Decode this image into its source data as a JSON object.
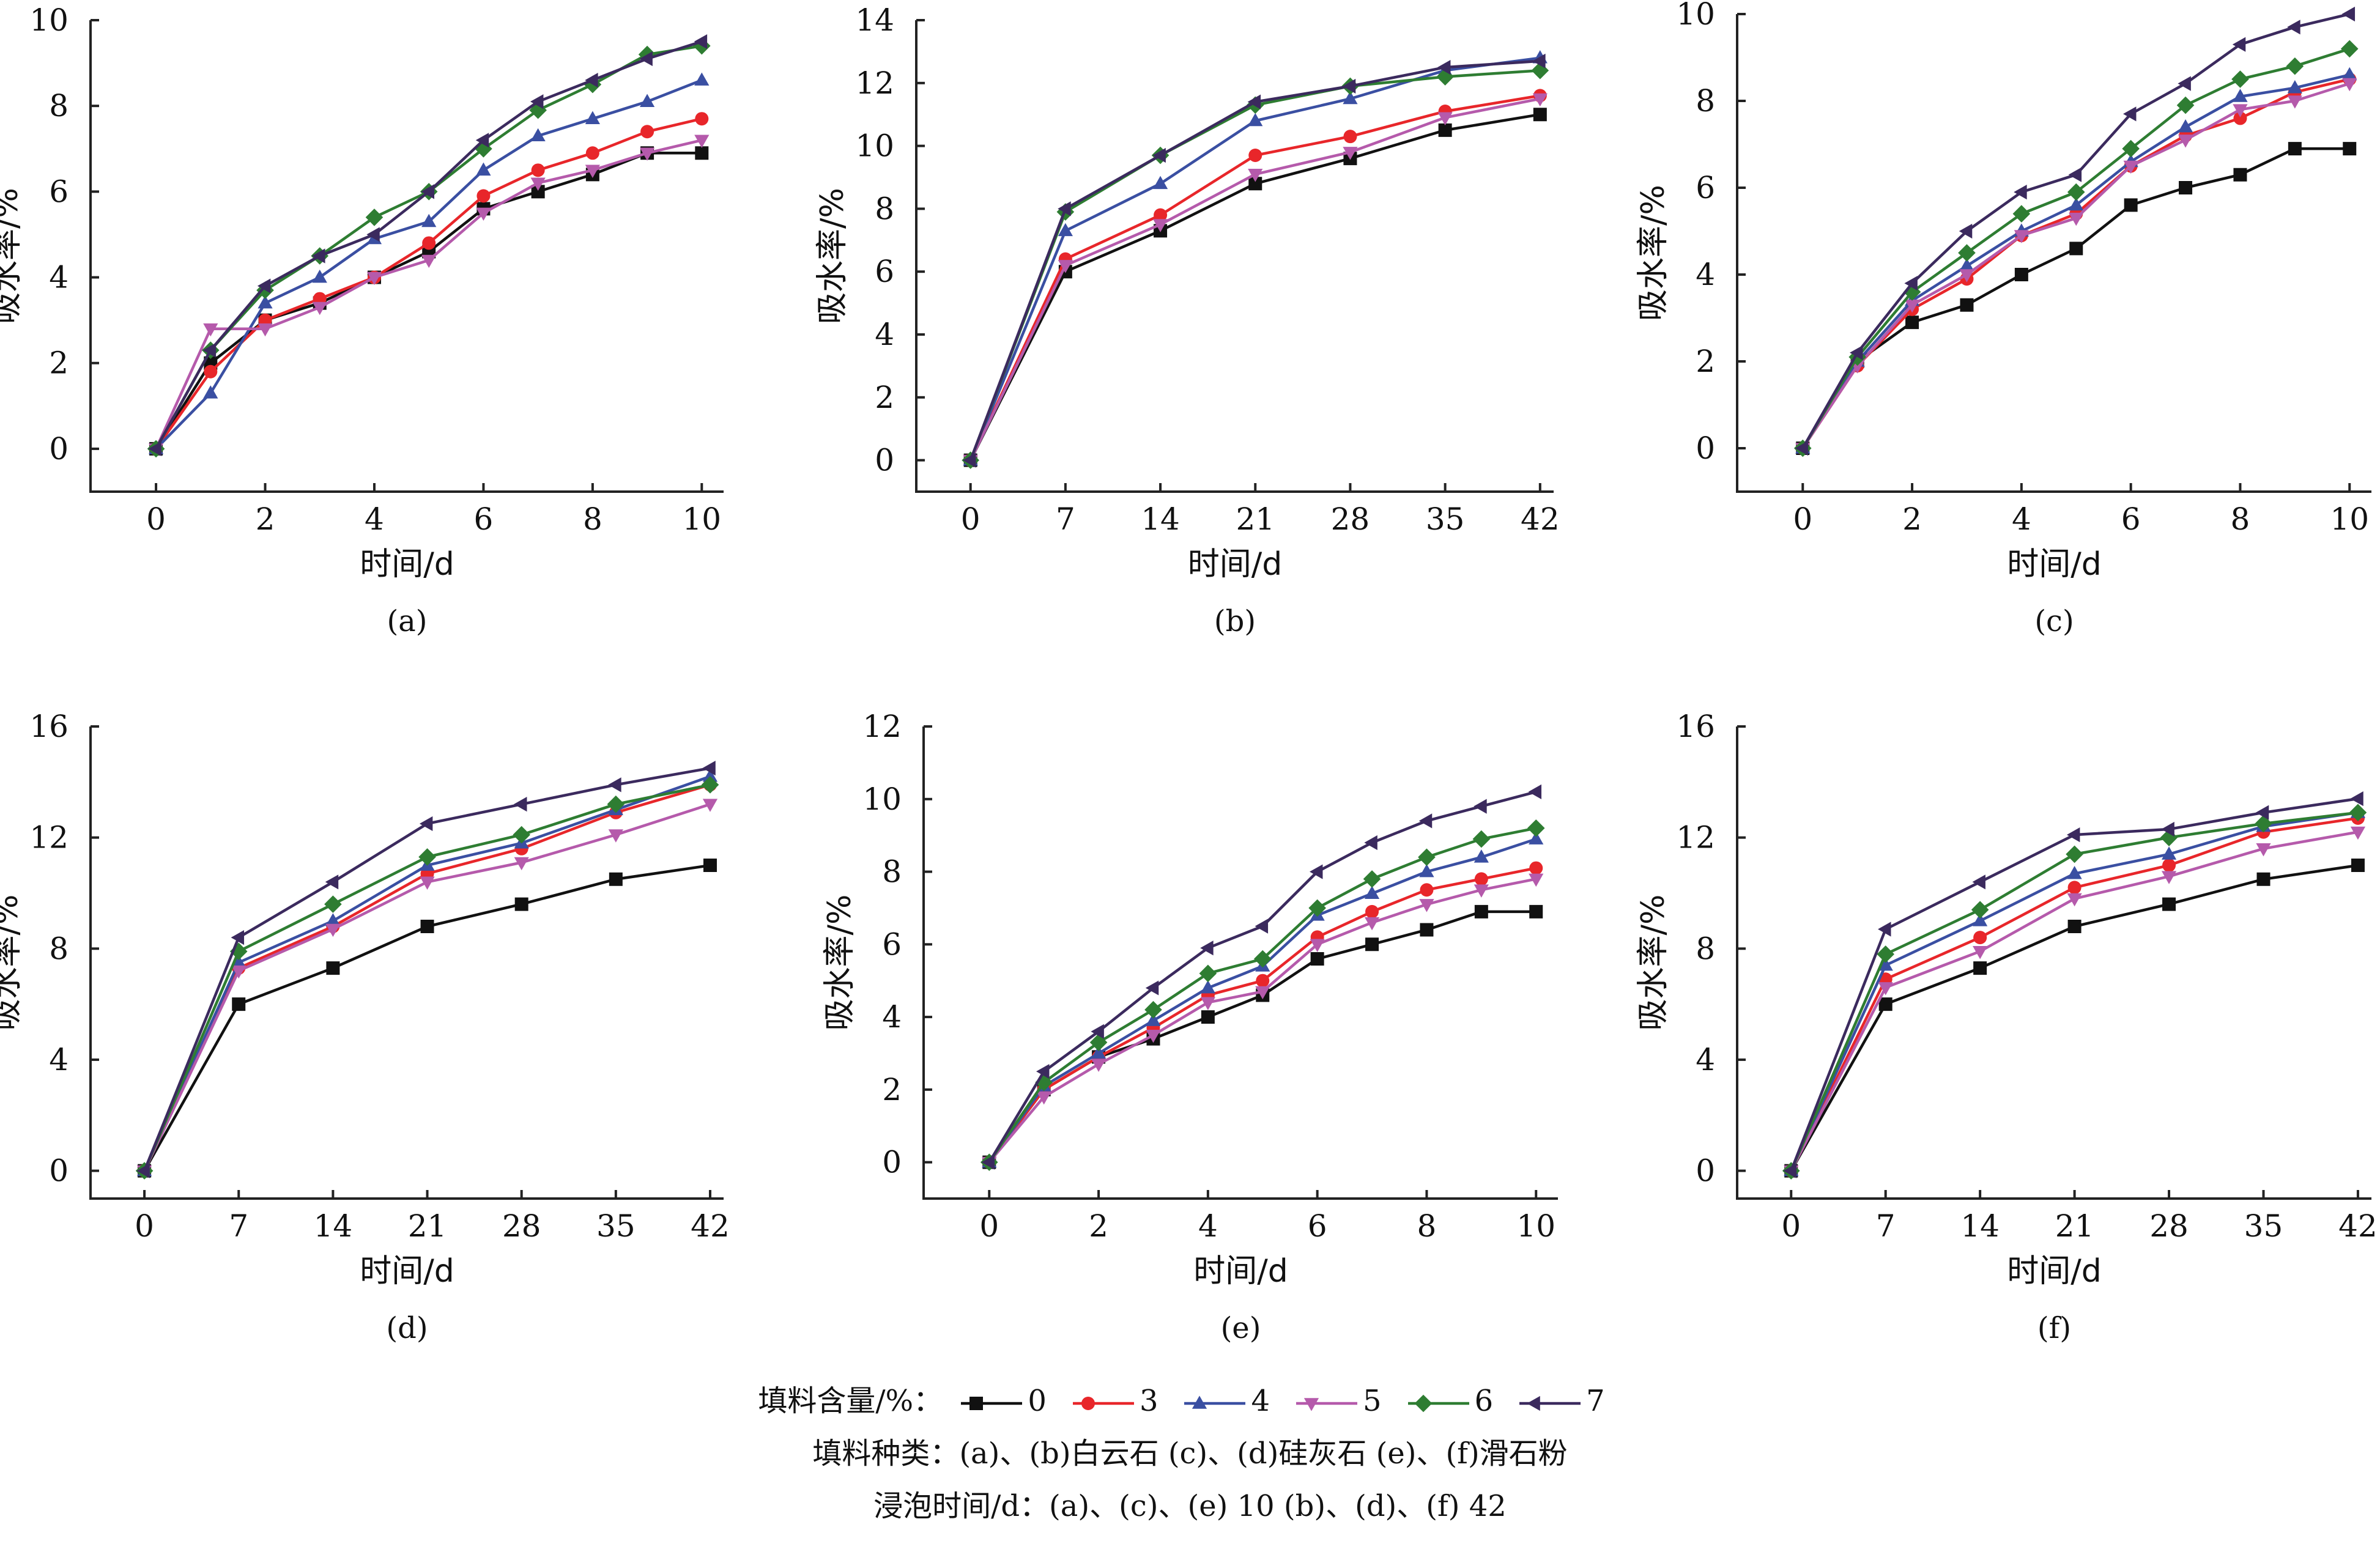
{
  "chart_data": [
    {
      "type": "line",
      "panel_label": "(a)",
      "xlabel": "时间/d",
      "ylabel": "吸水率/%",
      "x": [
        0,
        1,
        2,
        3,
        4,
        5,
        6,
        7,
        8,
        9,
        10
      ],
      "xticks": [
        0,
        2,
        4,
        6,
        8,
        10
      ],
      "xlim": [
        -1.2,
        10.4
      ],
      "yticks": [
        0,
        2,
        4,
        6,
        8,
        10
      ],
      "ylim": [
        -1,
        10
      ],
      "series": [
        {
          "name": "0",
          "values": [
            0,
            2.0,
            3.0,
            3.4,
            4.0,
            4.6,
            5.6,
            6.0,
            6.4,
            6.9,
            6.9
          ]
        },
        {
          "name": "3",
          "values": [
            0,
            1.8,
            3.0,
            3.5,
            4.0,
            4.8,
            5.9,
            6.5,
            6.9,
            7.4,
            7.7
          ]
        },
        {
          "name": "4",
          "values": [
            0,
            1.3,
            3.4,
            4.0,
            4.9,
            5.3,
            6.5,
            7.3,
            7.7,
            8.1,
            8.6
          ]
        },
        {
          "name": "5",
          "values": [
            0,
            2.8,
            2.8,
            3.3,
            4.0,
            4.4,
            5.5,
            6.2,
            6.5,
            6.9,
            7.2
          ]
        },
        {
          "name": "6",
          "values": [
            0,
            2.3,
            3.7,
            4.5,
            5.4,
            6.0,
            7.0,
            7.9,
            8.5,
            9.2,
            9.4
          ]
        },
        {
          "name": "7",
          "values": [
            0,
            2.3,
            3.8,
            4.5,
            5.0,
            6.0,
            7.2,
            8.1,
            8.6,
            9.1,
            9.5
          ]
        }
      ]
    },
    {
      "type": "line",
      "panel_label": "(b)",
      "xlabel": "时间/d",
      "ylabel": "吸水率/%",
      "x": [
        0,
        7,
        14,
        21,
        28,
        35,
        42
      ],
      "xticks": [
        0,
        7,
        14,
        21,
        28,
        35,
        42
      ],
      "xlim": [
        -4,
        43
      ],
      "yticks": [
        0,
        2,
        4,
        6,
        8,
        10,
        12,
        14
      ],
      "ylim": [
        -1,
        14
      ],
      "series": [
        {
          "name": "0",
          "values": [
            0,
            6.0,
            7.3,
            8.8,
            9.6,
            10.5,
            11.0
          ]
        },
        {
          "name": "3",
          "values": [
            0,
            6.4,
            7.8,
            9.7,
            10.3,
            11.1,
            11.6
          ]
        },
        {
          "name": "4",
          "values": [
            0,
            7.3,
            8.8,
            10.8,
            11.5,
            12.4,
            12.8
          ]
        },
        {
          "name": "5",
          "values": [
            0,
            6.2,
            7.5,
            9.1,
            9.8,
            10.9,
            11.5
          ]
        },
        {
          "name": "6",
          "values": [
            0,
            7.9,
            9.7,
            11.3,
            11.9,
            12.2,
            12.4
          ]
        },
        {
          "name": "7",
          "values": [
            0,
            8.0,
            9.7,
            11.4,
            11.9,
            12.5,
            12.7
          ]
        }
      ]
    },
    {
      "type": "line",
      "panel_label": "(c)",
      "xlabel": "时间/d",
      "ylabel": "吸水率/%",
      "x": [
        0,
        1,
        2,
        3,
        4,
        5,
        6,
        7,
        8,
        9,
        10
      ],
      "xticks": [
        0,
        2,
        4,
        6,
        8,
        10
      ],
      "xlim": [
        -1.2,
        10.4
      ],
      "yticks": [
        0,
        2,
        4,
        6,
        8,
        10
      ],
      "ylim": [
        -1,
        10
      ],
      "series": [
        {
          "name": "0",
          "values": [
            0,
            2.0,
            2.9,
            3.3,
            4.0,
            4.6,
            5.6,
            6.0,
            6.3,
            6.9,
            6.9
          ]
        },
        {
          "name": "3",
          "values": [
            0,
            1.9,
            3.2,
            3.9,
            4.9,
            5.4,
            6.5,
            7.2,
            7.6,
            8.2,
            8.5
          ]
        },
        {
          "name": "4",
          "values": [
            0,
            2.0,
            3.4,
            4.2,
            5.0,
            5.6,
            6.6,
            7.4,
            8.1,
            8.3,
            8.6
          ]
        },
        {
          "name": "5",
          "values": [
            0,
            1.9,
            3.3,
            4.0,
            4.9,
            5.3,
            6.5,
            7.1,
            7.8,
            8.0,
            8.4
          ]
        },
        {
          "name": "6",
          "values": [
            0,
            2.1,
            3.6,
            4.5,
            5.4,
            5.9,
            6.9,
            7.9,
            8.5,
            8.8,
            9.2
          ]
        },
        {
          "name": "7",
          "values": [
            0,
            2.2,
            3.8,
            5.0,
            5.9,
            6.3,
            7.7,
            8.4,
            9.3,
            9.7,
            10.0
          ]
        }
      ]
    },
    {
      "type": "line",
      "panel_label": "(d)",
      "xlabel": "时间/d",
      "ylabel": "吸水率/%",
      "x": [
        0,
        7,
        14,
        21,
        28,
        35,
        42
      ],
      "xticks": [
        0,
        7,
        14,
        21,
        28,
        35,
        42
      ],
      "xlim": [
        -4,
        43
      ],
      "yticks": [
        0,
        4,
        8,
        12,
        16
      ],
      "ylim": [
        -1,
        16
      ],
      "series": [
        {
          "name": "0",
          "values": [
            0,
            6.0,
            7.3,
            8.8,
            9.6,
            10.5,
            11.0
          ]
        },
        {
          "name": "3",
          "values": [
            0,
            7.3,
            8.8,
            10.7,
            11.6,
            12.9,
            13.9
          ]
        },
        {
          "name": "4",
          "values": [
            0,
            7.5,
            9.0,
            11.0,
            11.8,
            13.0,
            14.2
          ]
        },
        {
          "name": "5",
          "values": [
            0,
            7.2,
            8.7,
            10.4,
            11.1,
            12.1,
            13.2
          ]
        },
        {
          "name": "6",
          "values": [
            0,
            7.9,
            9.6,
            11.3,
            12.1,
            13.2,
            13.9
          ]
        },
        {
          "name": "7",
          "values": [
            0,
            8.4,
            10.4,
            12.5,
            13.2,
            13.9,
            14.5
          ]
        }
      ]
    },
    {
      "type": "line",
      "panel_label": "(e)",
      "xlabel": "时间/d",
      "ylabel": "吸水率/%",
      "x": [
        0,
        1,
        2,
        3,
        4,
        5,
        6,
        7,
        8,
        9,
        10
      ],
      "xticks": [
        0,
        2,
        4,
        6,
        8,
        10
      ],
      "xlim": [
        -1.2,
        10.4
      ],
      "yticks": [
        0,
        2,
        4,
        6,
        8,
        10,
        12
      ],
      "ylim": [
        -1,
        12
      ],
      "series": [
        {
          "name": "0",
          "values": [
            0,
            2.0,
            2.9,
            3.4,
            4.0,
            4.6,
            5.6,
            6.0,
            6.4,
            6.9,
            6.9
          ]
        },
        {
          "name": "3",
          "values": [
            0,
            2.0,
            2.9,
            3.7,
            4.6,
            5.0,
            6.2,
            6.9,
            7.5,
            7.8,
            8.1
          ]
        },
        {
          "name": "4",
          "values": [
            0,
            2.1,
            3.0,
            3.9,
            4.8,
            5.4,
            6.8,
            7.4,
            8.0,
            8.4,
            8.9
          ]
        },
        {
          "name": "5",
          "values": [
            0,
            1.8,
            2.7,
            3.5,
            4.4,
            4.7,
            6.0,
            6.6,
            7.1,
            7.5,
            7.8
          ]
        },
        {
          "name": "6",
          "values": [
            0,
            2.2,
            3.3,
            4.2,
            5.2,
            5.6,
            7.0,
            7.8,
            8.4,
            8.9,
            9.2
          ]
        },
        {
          "name": "7",
          "values": [
            0,
            2.5,
            3.6,
            4.8,
            5.9,
            6.5,
            8.0,
            8.8,
            9.4,
            9.8,
            10.2
          ]
        }
      ]
    },
    {
      "type": "line",
      "panel_label": "(f)",
      "xlabel": "时间/d",
      "ylabel": "吸水率/%",
      "x": [
        0,
        7,
        14,
        21,
        28,
        35,
        42
      ],
      "xticks": [
        0,
        7,
        14,
        21,
        28,
        35,
        42
      ],
      "xlim": [
        -4,
        43
      ],
      "yticks": [
        0,
        4,
        8,
        12,
        16
      ],
      "ylim": [
        -1,
        16
      ],
      "series": [
        {
          "name": "0",
          "values": [
            0,
            6.0,
            7.3,
            8.8,
            9.6,
            10.5,
            11.0
          ]
        },
        {
          "name": "3",
          "values": [
            0,
            6.9,
            8.4,
            10.2,
            11.0,
            12.2,
            12.7
          ]
        },
        {
          "name": "4",
          "values": [
            0,
            7.4,
            9.0,
            10.7,
            11.4,
            12.4,
            12.9
          ]
        },
        {
          "name": "5",
          "values": [
            0,
            6.6,
            7.9,
            9.8,
            10.6,
            11.6,
            12.2
          ]
        },
        {
          "name": "6",
          "values": [
            0,
            7.8,
            9.4,
            11.4,
            12.0,
            12.5,
            12.9
          ]
        },
        {
          "name": "7",
          "values": [
            0,
            8.7,
            10.4,
            12.1,
            12.3,
            12.9,
            13.4
          ]
        }
      ]
    }
  ],
  "series_styles": [
    {
      "name": "0",
      "color": "#111111",
      "marker": "square"
    },
    {
      "name": "3",
      "color": "#e8262a",
      "marker": "circle"
    },
    {
      "name": "4",
      "color": "#3a4fa2",
      "marker": "triangle-up"
    },
    {
      "name": "5",
      "color": "#b55aab",
      "marker": "triangle-down"
    },
    {
      "name": "6",
      "color": "#2e7d32",
      "marker": "diamond"
    },
    {
      "name": "7",
      "color": "#3b2a5e",
      "marker": "triangle-left"
    }
  ],
  "legend": {
    "title": "填料含量/%：",
    "line2": "填料种类：(a)、(b)白云石    (c)、(d)硅灰石    (e)、(f)滑石粉",
    "line3": "浸泡时间/d：(a)、(c)、(e) 10    (b)、(d)、(f) 42"
  }
}
